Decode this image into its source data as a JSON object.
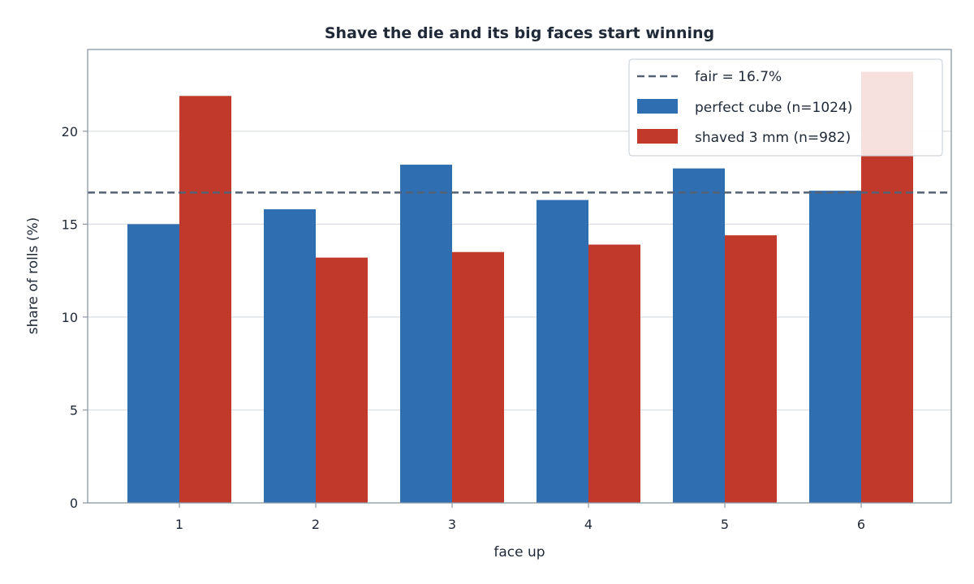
{
  "chart_data": {
    "type": "bar",
    "title": "Shave the die and its big faces start winning",
    "xlabel": "face up",
    "ylabel": "share of rolls  (%)",
    "categories": [
      "1",
      "2",
      "3",
      "4",
      "5",
      "6"
    ],
    "series": [
      {
        "name": "perfect cube  (n=1024)",
        "color": "#2f6eb0",
        "values": [
          15.0,
          15.8,
          18.2,
          16.3,
          18.0,
          16.8
        ]
      },
      {
        "name": "shaved 3 mm  (n=982)",
        "color": "#c0392b",
        "values": [
          21.9,
          13.2,
          13.5,
          13.9,
          14.4,
          23.2
        ]
      }
    ],
    "reference_line": {
      "label": "fair = 16.7%",
      "value": 16.7,
      "color": "#556274",
      "style": "dashed"
    },
    "ylim": [
      0,
      24.4
    ],
    "yticks": [
      0,
      5,
      10,
      15,
      20
    ],
    "grid": "horizontal",
    "legend_position": "top-right"
  }
}
